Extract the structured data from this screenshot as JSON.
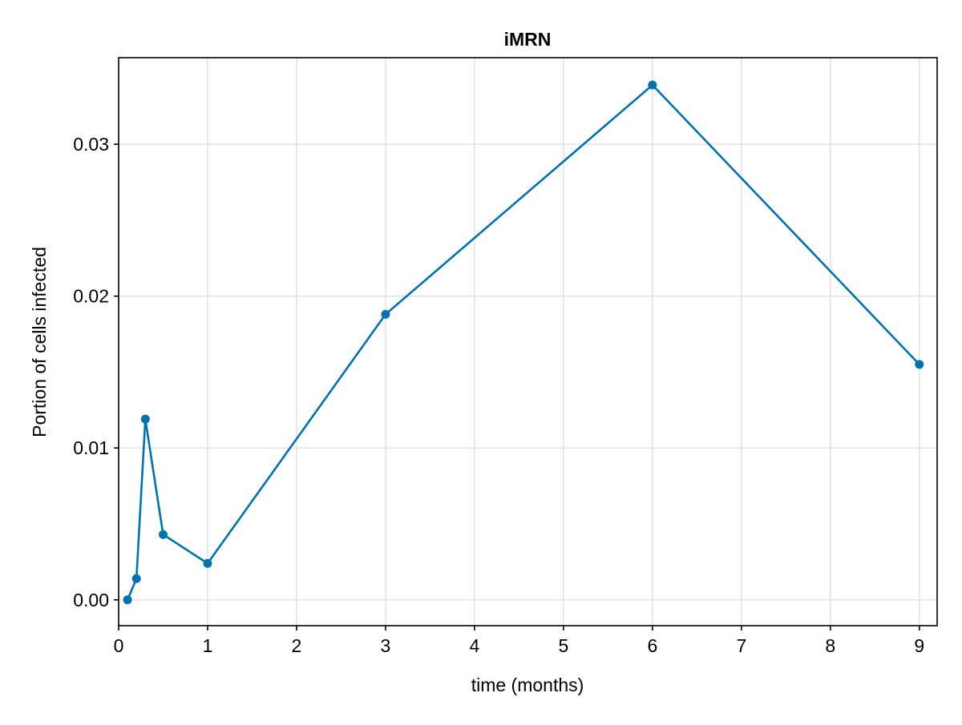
{
  "chart_data": {
    "type": "line",
    "title": "iMRN",
    "xlabel": "time (months)",
    "ylabel": "Portion of cells infected",
    "xlim": [
      0,
      9.2
    ],
    "ylim": [
      -0.0017,
      0.0357
    ],
    "x_ticks": [
      0,
      1,
      2,
      3,
      4,
      5,
      6,
      7,
      8,
      9
    ],
    "x_tick_labels": [
      "0",
      "1",
      "2",
      "3",
      "4",
      "5",
      "6",
      "7",
      "8",
      "9"
    ],
    "y_ticks": [
      0.0,
      0.01,
      0.02,
      0.03
    ],
    "y_tick_labels": [
      "0.00",
      "0.01",
      "0.02",
      "0.03"
    ],
    "grid": true,
    "legend": "none",
    "series": [
      {
        "color": "#0072b2",
        "x": [
          0.1,
          0.2,
          0.3,
          0.5,
          1,
          3,
          6,
          9
        ],
        "y": [
          0.0,
          0.0014,
          0.0119,
          0.0043,
          0.0024,
          0.0188,
          0.0339,
          0.0155
        ]
      }
    ]
  }
}
